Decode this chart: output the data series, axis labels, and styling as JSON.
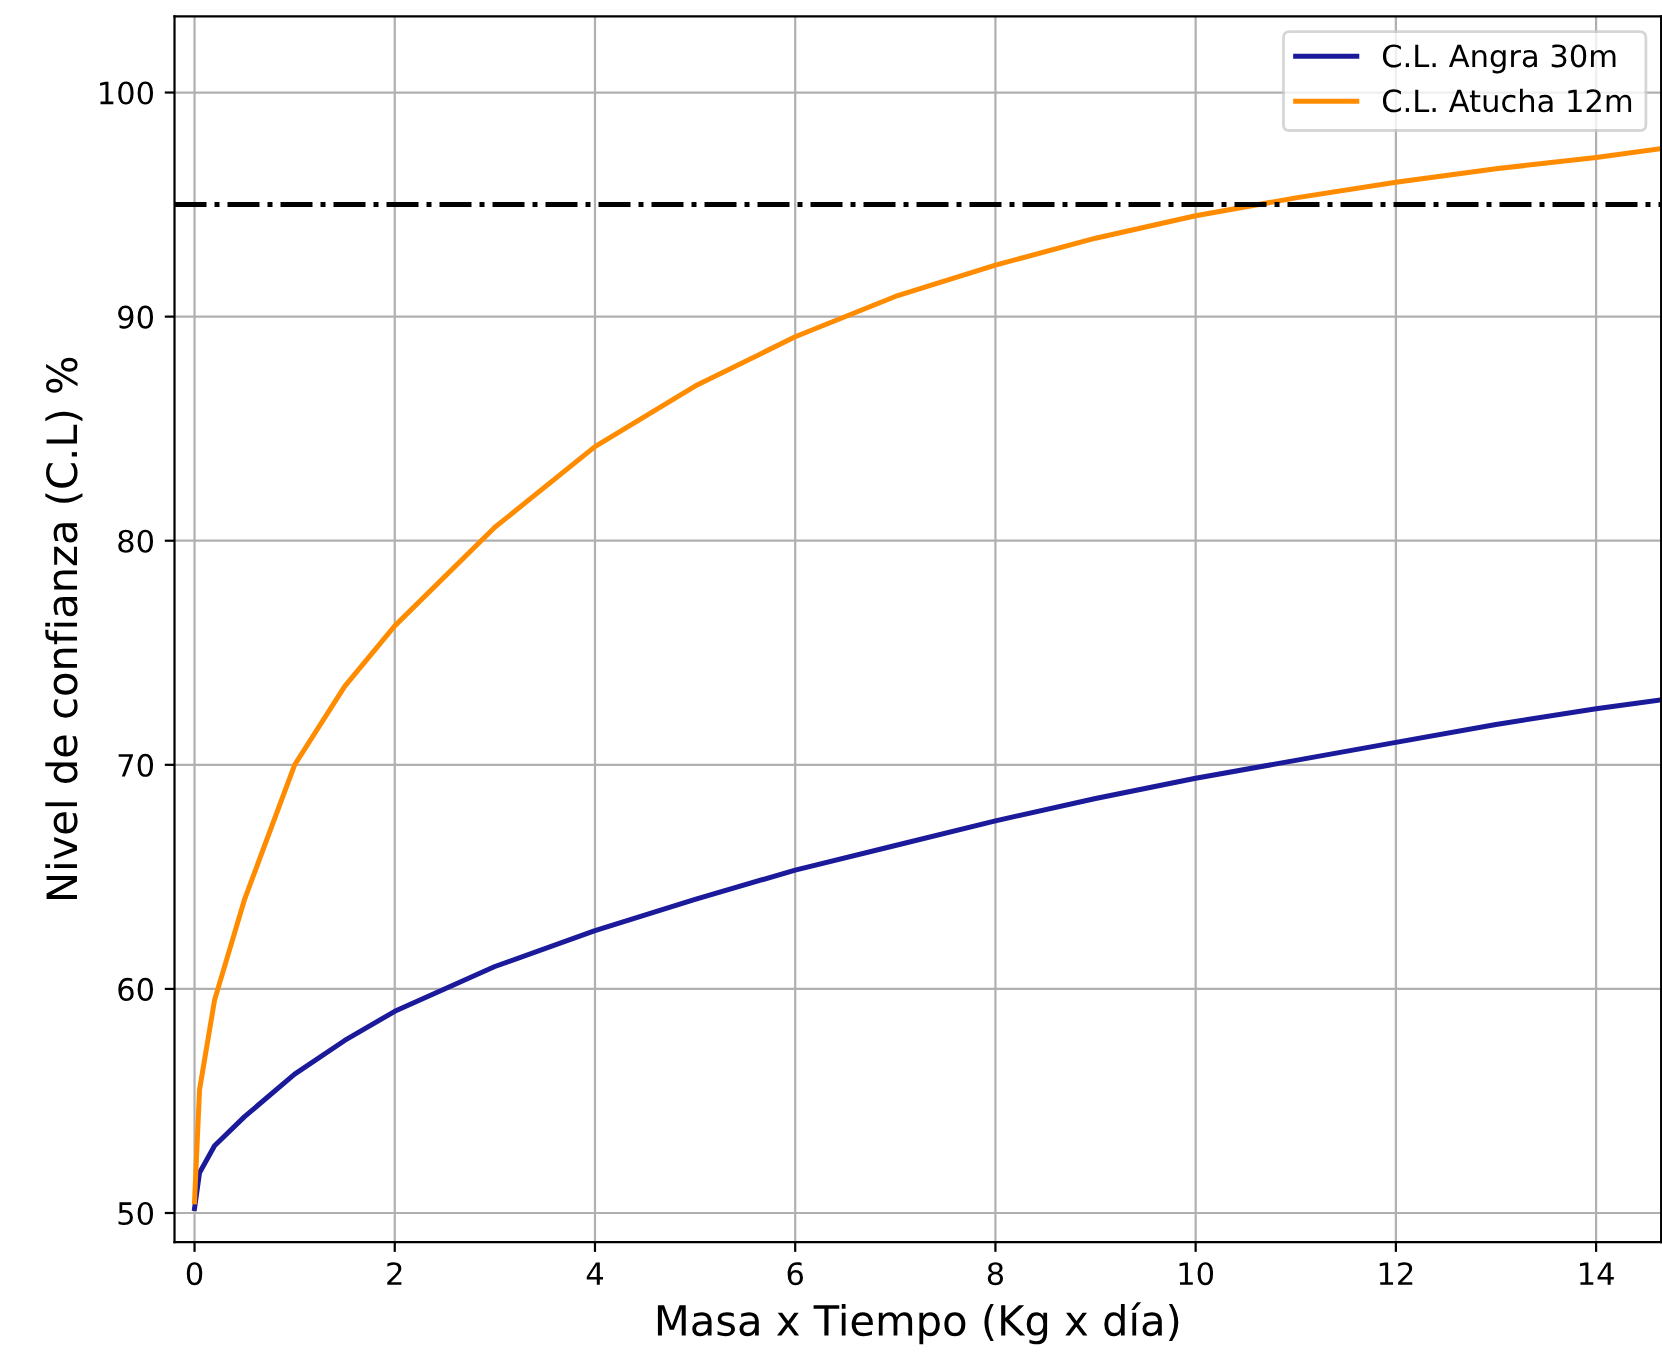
{
  "chart_data": {
    "type": "line",
    "xlabel": "Masa x Tiempo (Kg x día)",
    "ylabel": "Nivel de confianza (C.L) %",
    "xlim": [
      -0.2,
      14.65
    ],
    "xticks": [
      0,
      2,
      4,
      6,
      8,
      10,
      12,
      14
    ],
    "ylim": [
      48.7,
      103.4
    ],
    "yticks": [
      50,
      60,
      70,
      80,
      90,
      100
    ],
    "grid": true,
    "legend": "top right",
    "line_style": "solid",
    "series": [
      {
        "name": "C.L. Angra 30m",
        "color": "#1a1a9a",
        "x": [
          0,
          0.05,
          0.2,
          0.5,
          1,
          1.5,
          2,
          3,
          4,
          5,
          6,
          7,
          8,
          9,
          10,
          11,
          12,
          13,
          14,
          14.65
        ],
        "values": [
          50.2,
          51.8,
          53.0,
          54.3,
          56.2,
          57.7,
          59.0,
          61.0,
          62.6,
          64.0,
          65.3,
          66.4,
          67.5,
          68.5,
          69.4,
          70.2,
          71.0,
          71.8,
          72.5,
          72.9
        ]
      },
      {
        "name": "C.L. Atucha 12m",
        "color": "#ff8c00",
        "x": [
          0,
          0.05,
          0.2,
          0.5,
          1,
          1.5,
          2,
          3,
          4,
          5,
          6,
          7,
          8,
          9,
          10,
          11,
          12,
          13,
          14,
          14.65
        ],
        "values": [
          50.5,
          55.5,
          59.5,
          64.0,
          70.0,
          73.5,
          76.2,
          80.6,
          84.2,
          86.9,
          89.1,
          90.9,
          92.3,
          93.5,
          94.5,
          95.3,
          96.0,
          96.6,
          97.1,
          97.5
        ]
      }
    ],
    "ref_lines": [
      {
        "axis": "y",
        "value": 95,
        "color": "#000000",
        "line_style": "dashdot"
      }
    ]
  }
}
